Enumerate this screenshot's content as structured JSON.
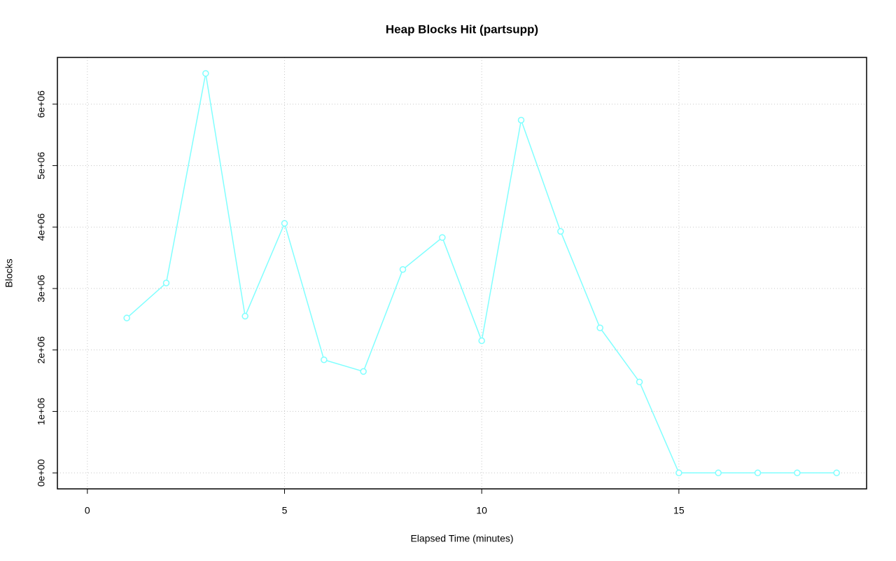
{
  "chart_data": {
    "type": "line",
    "title": "Heap Blocks Hit (partsupp)",
    "x_label": "Elapsed Time (minutes)",
    "y_label": "Blocks",
    "x": [
      1,
      2,
      3,
      4,
      5,
      6,
      7,
      8,
      9,
      10,
      11,
      12,
      13,
      14,
      15,
      16,
      17,
      18,
      19
    ],
    "series": [
      {
        "name": "partsupp",
        "color": "#80ffff",
        "values": [
          2520000,
          3090000,
          6500000,
          2550000,
          4060000,
          1840000,
          1650000,
          3310000,
          3830000,
          2150000,
          5740000,
          3930000,
          2360000,
          1480000,
          0,
          0,
          0,
          0,
          0
        ]
      }
    ],
    "xlim": [
      -0.76,
      19.76
    ],
    "ylim": [
      -260000,
      6760000
    ],
    "xticks": [
      0,
      5,
      10,
      15
    ],
    "yticks": [
      {
        "value": 0,
        "label": "0e+00"
      },
      {
        "value": 1000000,
        "label": "1e+06"
      },
      {
        "value": 2000000,
        "label": "2e+06"
      },
      {
        "value": 3000000,
        "label": "3e+06"
      },
      {
        "value": 4000000,
        "label": "4e+06"
      },
      {
        "value": 5000000,
        "label": "5e+06"
      },
      {
        "value": 6000000,
        "label": "6e+06"
      }
    ],
    "grid": true
  }
}
